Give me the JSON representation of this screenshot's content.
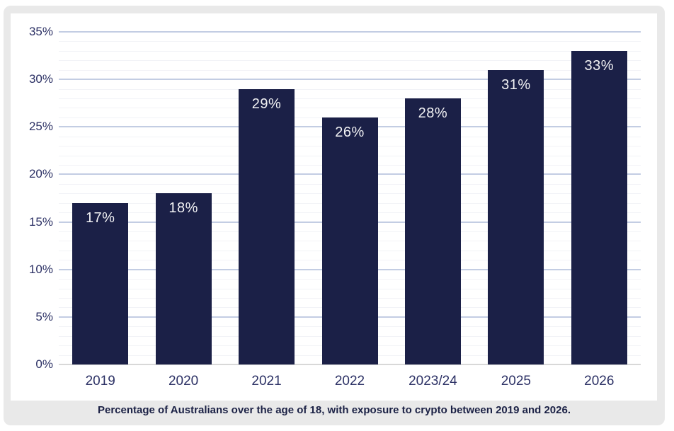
{
  "caption": "Percentage of Australians over the age of 18, with exposure to crypto between 2019 and 2026.",
  "chart_data": {
    "type": "bar",
    "title": "",
    "xlabel": "",
    "ylabel": "",
    "categories": [
      "2019",
      "2020",
      "2021",
      "2022",
      "2023/24",
      "2025",
      "2026"
    ],
    "values": [
      17,
      18,
      29,
      26,
      28,
      31,
      33
    ],
    "bar_labels": [
      "17%",
      "18%",
      "29%",
      "26%",
      "28%",
      "31%",
      "33%"
    ],
    "ylim": [
      0,
      35
    ],
    "ytick_step": 5,
    "ytick_labels": [
      "0%",
      "5%",
      "10%",
      "15%",
      "20%",
      "25%",
      "30%",
      "35%"
    ],
    "minor_tick_step": 1,
    "grid": "on",
    "legend": "none",
    "colors": {
      "bar": "#1b2047",
      "bar_value_label": "#f2f2f4",
      "grid_major": "#c3cde3",
      "grid_minor": "#f2f3f7",
      "baseline": "#d8d8d8",
      "tick_label": "#2c3165",
      "caption_text": "#1b2145",
      "card_background": "#e9e9e9",
      "panel_background": "#ffffff"
    }
  }
}
